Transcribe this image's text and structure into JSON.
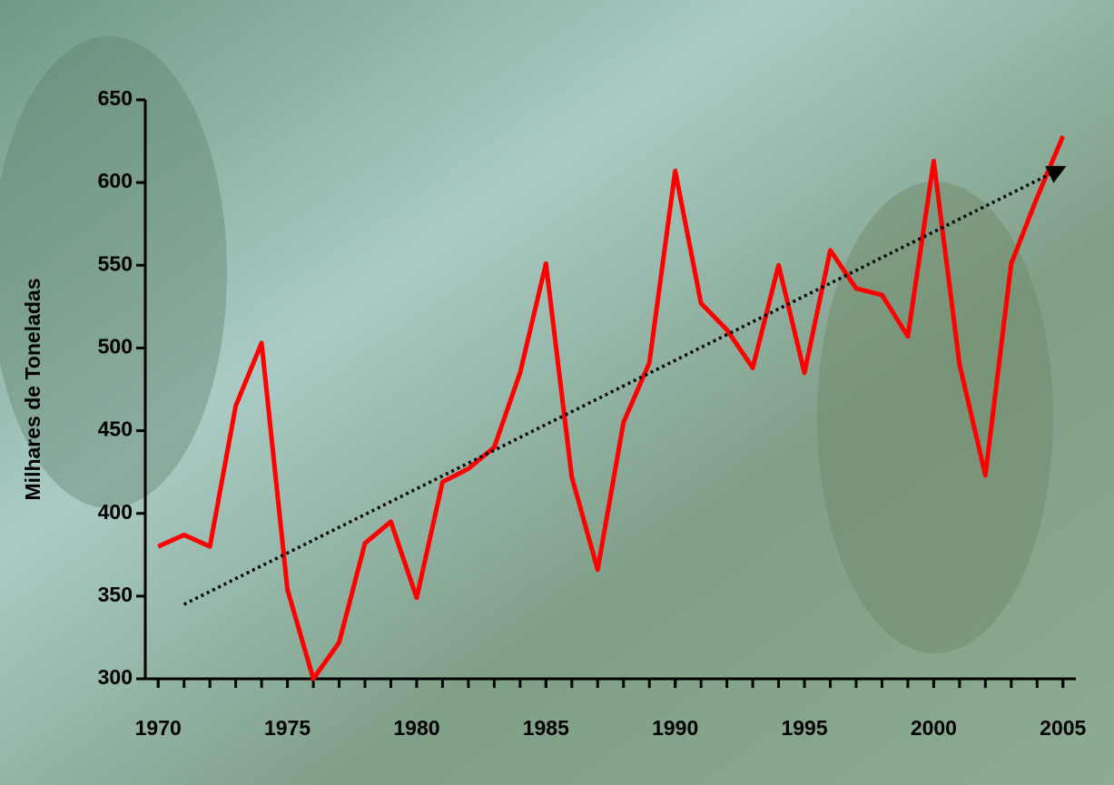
{
  "chart_data": {
    "type": "line",
    "y_label": "Milhares de Toneladas",
    "x": [
      1970,
      1971,
      1972,
      1973,
      1974,
      1975,
      1976,
      1977,
      1978,
      1979,
      1980,
      1981,
      1982,
      1983,
      1984,
      1985,
      1986,
      1987,
      1988,
      1989,
      1990,
      1991,
      1992,
      1993,
      1994,
      1995,
      1996,
      1997,
      1998,
      1999,
      2000,
      2001,
      2002,
      2003,
      2004,
      2005
    ],
    "series": [
      {
        "color": "#ff0000",
        "values": [
          380,
          387,
          380,
          465,
          503,
          354,
          300,
          322,
          382,
          395,
          349,
          419,
          427,
          440,
          485,
          551,
          422,
          366,
          455,
          491,
          607,
          527,
          511,
          488,
          550,
          485,
          559,
          536,
          532,
          507,
          613,
          490,
          423,
          551,
          591,
          628
        ]
      }
    ],
    "trendline": {
      "color": "#000000",
      "x": [
        1971,
        2005
      ],
      "values": [
        345,
        609
      ]
    },
    "xlim": [
      1969.5,
      2005.5
    ],
    "xticks": [
      1970,
      1975,
      1980,
      1985,
      1990,
      1995,
      2000,
      2005
    ],
    "x_minor_ticks": [
      1970,
      1971,
      1972,
      1973,
      1974,
      1975,
      1976,
      1977,
      1978,
      1979,
      1980,
      1981,
      1982,
      1983,
      1984,
      1985,
      1986,
      1987,
      1988,
      1989,
      1990,
      1991,
      1992,
      1993,
      1994,
      1995,
      1996,
      1997,
      1998,
      1999,
      2000,
      2001,
      2002,
      2003,
      2004,
      2005
    ],
    "ylim": [
      300,
      650
    ],
    "yticks": [
      300,
      350,
      400,
      450,
      500,
      550,
      600,
      650
    ]
  }
}
